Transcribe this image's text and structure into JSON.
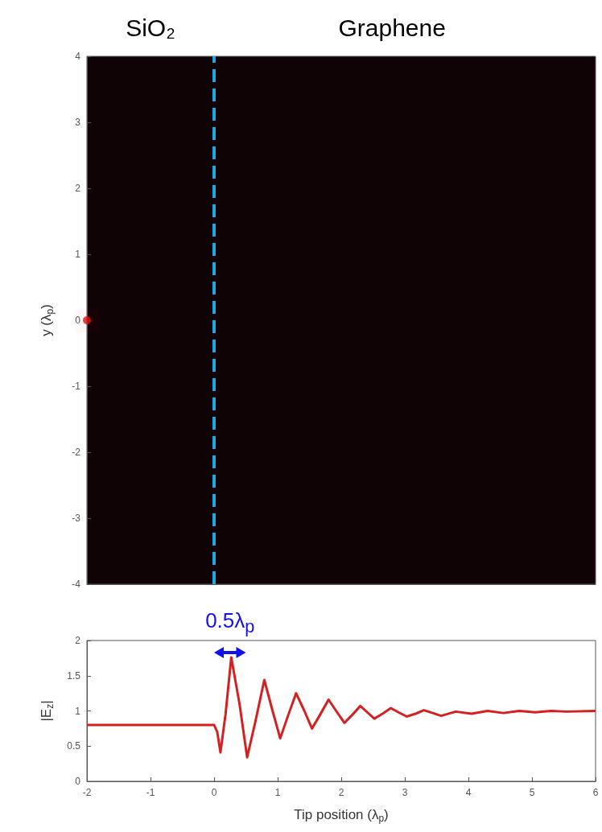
{
  "chart_data": [
    {
      "type": "scatter",
      "ylabel": "y (λ$_{p}$)",
      "xlim": [
        -2,
        6
      ],
      "ylim": [
        -4,
        4
      ],
      "yticks": [
        -4,
        -3,
        -2,
        -1,
        0,
        1,
        2,
        3,
        4
      ],
      "tick_labels": "y",
      "grid": false,
      "marker": "circle",
      "series": [
        {
          "color": "#e01010",
          "x": [
            -2
          ],
          "values": [
            0
          ]
        }
      ],
      "ref_lines": [
        {
          "axis": "x",
          "value": 0,
          "color": "#1ea8e0",
          "line_style": "dashed"
        }
      ],
      "annotations": [
        "SiO₂",
        "Graphene"
      ]
    },
    {
      "type": "line",
      "xlabel": "Tip position (λ$_{p}$)",
      "ylabel": "|E$_{z}$|",
      "xlim": [
        -2,
        6
      ],
      "xticks": [
        -2,
        -1,
        0,
        1,
        2,
        3,
        4,
        5,
        6
      ],
      "ylim": [
        0,
        2
      ],
      "yticks": [
        0,
        0.5,
        1,
        1.5,
        2
      ],
      "grid": false,
      "marker": "none",
      "line_style": "solid",
      "series": [
        {
          "color": "#d42020",
          "x": [
            -2,
            -1,
            0,
            0.05,
            0.1,
            0.18,
            0.27,
            0.4,
            0.52,
            0.65,
            0.79,
            0.92,
            1.04,
            1.17,
            1.29,
            1.42,
            1.54,
            1.67,
            1.8,
            1.92,
            2.05,
            2.18,
            2.3,
            2.41,
            2.52,
            2.65,
            2.78,
            2.9,
            3.03,
            3.17,
            3.3,
            3.44,
            3.57,
            3.8,
            4.05,
            4.3,
            4.55,
            4.8,
            5.05,
            5.3,
            5.55,
            6
          ],
          "values": [
            0.8,
            0.8,
            0.8,
            0.7,
            0.41,
            0.95,
            1.76,
            1.1,
            0.34,
            0.85,
            1.44,
            1.0,
            0.61,
            0.95,
            1.25,
            1.0,
            0.75,
            0.95,
            1.16,
            1.0,
            0.83,
            0.95,
            1.07,
            0.98,
            0.89,
            0.96,
            1.04,
            0.98,
            0.92,
            0.96,
            1.01,
            0.97,
            0.93,
            0.99,
            0.96,
            1.0,
            0.97,
            1.0,
            0.98,
            1.0,
            0.99,
            1.0
          ]
        }
      ],
      "annotations": [
        "0.5λ$_{p}$"
      ]
    }
  ]
}
